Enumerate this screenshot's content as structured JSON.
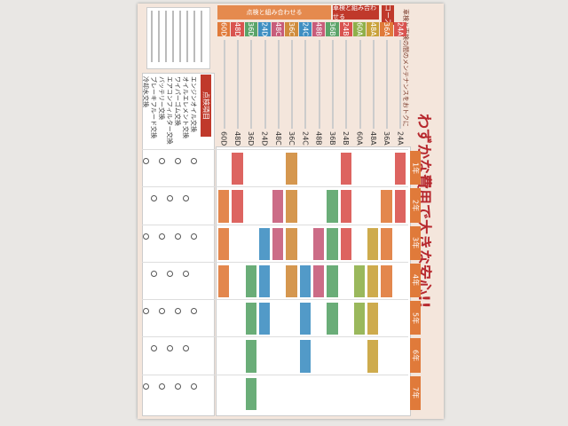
{
  "header": {
    "title": "わずかな費用で大きな安心!!",
    "subtitle": "車検と車検の間のメンテナンスをおトクに",
    "section_a": "車検と組み合わせる",
    "section_b": "点検と組み合わせる",
    "course_label": "コース"
  },
  "courses": [
    {
      "code": "24A",
      "color": "#d9534f"
    },
    {
      "code": "36A",
      "color": "#e07a3a"
    },
    {
      "code": "48A",
      "color": "#c9a23a"
    },
    {
      "code": "60A",
      "color": "#8fb04a"
    },
    {
      "code": "24B",
      "color": "#d9534f"
    },
    {
      "code": "36B",
      "color": "#5aa469"
    },
    {
      "code": "48B",
      "color": "#c75c7a"
    },
    {
      "code": "24C",
      "color": "#3f8fc2"
    },
    {
      "code": "36C",
      "color": "#d08c3c"
    },
    {
      "code": "48C",
      "color": "#c75c7a"
    },
    {
      "code": "24D",
      "color": "#3f8fc2"
    },
    {
      "code": "36D",
      "color": "#5aa469"
    },
    {
      "code": "48D",
      "color": "#d9534f"
    },
    {
      "code": "60D",
      "color": "#e07a3a"
    }
  ],
  "years": [
    "1年",
    "2年",
    "3年",
    "4年",
    "5年",
    "6年",
    "7年"
  ],
  "menu": {
    "title": "点検項目",
    "items": [
      "エンジンオイル交換",
      "オイルエレメント交換",
      "ワイパーゴム交換",
      "エアコンフィルター交換",
      "バッテリー交換",
      "ブレーキフルード交換",
      "冷却水交換"
    ]
  }
}
